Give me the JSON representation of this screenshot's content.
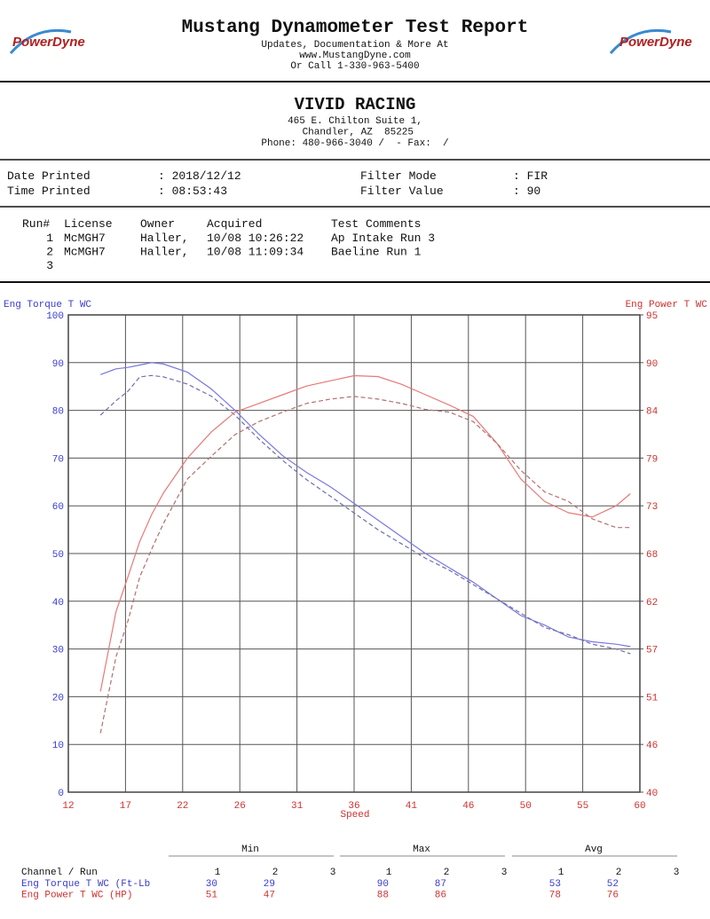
{
  "header": {
    "logo": "PowerDyne",
    "title": "Mustang Dynamometer Test Report",
    "lines": [
      "Updates, Documentation & More At",
      "www.MustangDyne.com",
      "Or Call 1-330-963-5400"
    ]
  },
  "shop": {
    "name": "VIVID RACING",
    "lines": [
      "465 E. Chilton Suite 1,",
      " Chandler, AZ  85225",
      "Phone: 480-966-3040 /  - Fax:  /"
    ]
  },
  "info": [
    [
      "Date Printed",
      ": 2018/12/12",
      "Filter Mode",
      ": FIR"
    ],
    [
      "Time Printed",
      ": 08:53:43",
      "Filter Value",
      ": 90"
    ]
  ],
  "runs": {
    "columns": [
      "Run#",
      "License",
      "Owner",
      "Acquired",
      "Test Comments"
    ],
    "rows": [
      [
        "1",
        "McMGH7",
        "Haller,",
        "10/08 10:26:22",
        "Ap Intake Run 3"
      ],
      [
        "2",
        "McMGH7",
        "Haller,",
        "10/08 11:09:34",
        "Baeline Run 1"
      ],
      [
        "3"
      ]
    ]
  },
  "chart_data": {
    "type": "line",
    "ylabel": "Eng Torque T WC",
    "y2label": "Eng Power T WC",
    "xlabel": "Speed",
    "xlim": [
      12,
      60
    ],
    "xticks": [
      12,
      {
        "value": 16.8,
        "label": "17"
      },
      {
        "value": 21.6,
        "label": "22"
      },
      {
        "value": 26.4,
        "label": "26"
      },
      {
        "value": 31.2,
        "label": "31"
      },
      36,
      {
        "value": 40.8,
        "label": "41"
      },
      {
        "value": 45.6,
        "label": "46"
      },
      {
        "value": 50.4,
        "label": "50"
      },
      {
        "value": 55.2,
        "label": "55"
      },
      60
    ],
    "ylim": [
      0,
      100
    ],
    "yticks": [
      0,
      10,
      20,
      30,
      40,
      50,
      60,
      70,
      80,
      90,
      100
    ],
    "y2lim": [
      40,
      95
    ],
    "y2ticks": [
      40,
      {
        "value": 45.5,
        "label": "46"
      },
      51,
      {
        "value": 56.5,
        "label": "57"
      },
      62,
      {
        "value": 67.5,
        "label": "68"
      },
      73,
      {
        "value": 78.5,
        "label": "79"
      },
      84,
      {
        "value": 89.5,
        "label": "90"
      },
      95
    ],
    "grid": true,
    "x": [
      14.7,
      16,
      17,
      18,
      19,
      20,
      22,
      24,
      26,
      28,
      30,
      32,
      34,
      36,
      38,
      40,
      42,
      44,
      46,
      48,
      50,
      52,
      54,
      56,
      58,
      59.2
    ],
    "series": [
      {
        "color": "#7878e0",
        "dashed": false,
        "values": [
          87.5,
          88.7,
          89,
          89.5,
          90,
          89.7,
          88,
          84.5,
          80,
          75,
          70.5,
          67,
          64,
          60.5,
          57,
          53.5,
          50,
          47,
          44,
          40.5,
          37,
          35,
          32.5,
          31.5,
          31,
          30.5
        ]
      },
      {
        "color": "#7070a8",
        "dashed": true,
        "values": [
          79,
          82,
          84,
          87,
          87.3,
          87,
          85.5,
          83,
          79,
          74,
          69.5,
          65.5,
          62,
          58.5,
          55,
          52,
          49,
          46.5,
          43.5,
          40.5,
          37.5,
          34.5,
          33,
          31,
          30,
          29
        ]
      },
      {
        "color": "#e87878",
        "dashed": false,
        "axis": "y2",
        "values": [
          51.6,
          60.8,
          64.8,
          68.9,
          72,
          74.5,
          78.5,
          81.5,
          83.8,
          84.8,
          85.8,
          86.8,
          87.4,
          88,
          87.9,
          87,
          85.8,
          84.6,
          83.3,
          80.2,
          76.1,
          73.5,
          72.2,
          71.7,
          73,
          74.4
        ]
      },
      {
        "color": "#b07070",
        "dashed": true,
        "axis": "y2",
        "values": [
          46.8,
          55.6,
          59.7,
          64.8,
          68,
          71,
          76.1,
          78.7,
          81.2,
          82.7,
          83.8,
          84.8,
          85.3,
          85.6,
          85.3,
          84.8,
          84.1,
          83.8,
          82.7,
          80.2,
          77.1,
          74.6,
          73.5,
          71.5,
          70.5,
          70.5
        ]
      }
    ]
  },
  "stats": {
    "groups": [
      "Min",
      "Max",
      "Avg"
    ],
    "channel_label": "Channel / Run",
    "runs": [
      "1",
      "2",
      "3"
    ],
    "rows": [
      {
        "channel": "Eng Torque T WC (Ft-Lb",
        "color": "#3a3ad0",
        "values": [
          [
            30,
            29
          ],
          [
            90,
            87
          ],
          [
            53,
            52
          ]
        ]
      },
      {
        "channel": "Eng Power T WC (HP)",
        "color": "#d03030",
        "values": [
          [
            51,
            47
          ],
          [
            88,
            86
          ],
          [
            78,
            76
          ]
        ]
      }
    ]
  }
}
